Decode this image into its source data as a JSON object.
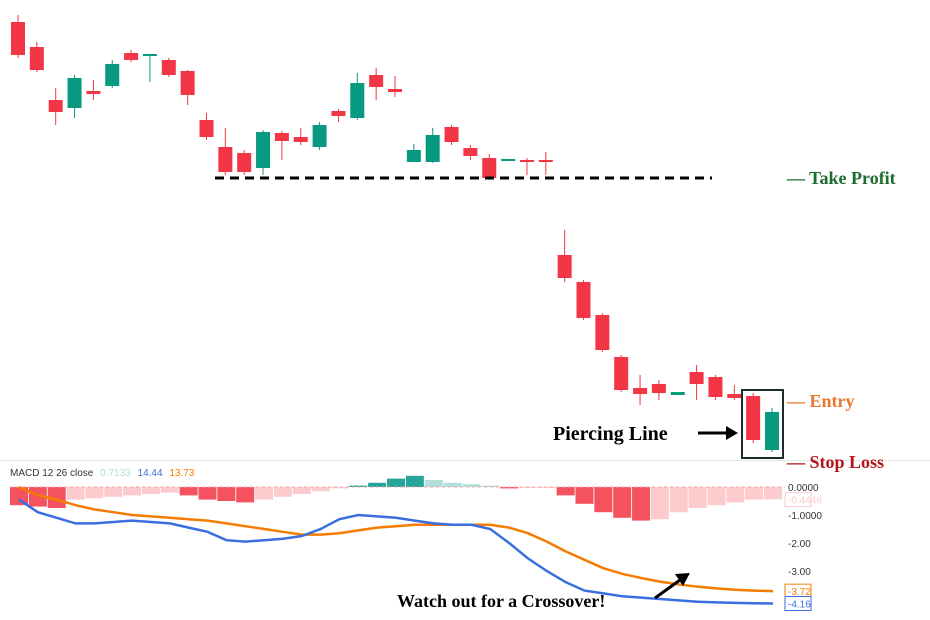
{
  "chart_data": [
    {
      "type": "candlestick",
      "title": "",
      "colors": {
        "up": "#089981",
        "down": "#f23645"
      },
      "ohlc": [
        [
          47.8,
          48.5,
          44.2,
          44.5
        ],
        [
          45.3,
          45.8,
          42.8,
          43.0
        ],
        [
          40.0,
          41.2,
          37.5,
          38.8
        ],
        [
          39.2,
          42.5,
          38.2,
          42.2
        ],
        [
          40.9,
          42.0,
          40.0,
          40.6
        ],
        [
          41.4,
          44.0,
          41.2,
          43.6
        ],
        [
          44.7,
          45.0,
          43.8,
          44.0
        ],
        [
          44.4,
          44.6,
          41.8,
          44.6
        ],
        [
          44.0,
          44.2,
          42.3,
          42.5
        ],
        [
          42.9,
          43.0,
          39.5,
          40.5
        ],
        [
          38.0,
          38.7,
          36.0,
          36.3
        ],
        [
          35.3,
          37.2,
          32.5,
          32.8
        ],
        [
          34.7,
          35.0,
          32.5,
          32.8
        ],
        [
          33.2,
          37.0,
          32.5,
          36.8
        ],
        [
          36.7,
          36.9,
          34.0,
          35.9
        ],
        [
          36.3,
          37.2,
          35.5,
          35.8
        ],
        [
          35.3,
          37.8,
          35.0,
          37.5
        ],
        [
          38.9,
          39.1,
          37.8,
          38.4
        ],
        [
          38.2,
          42.7,
          38.0,
          41.7
        ],
        [
          42.5,
          43.2,
          40.0,
          41.3
        ],
        [
          41.1,
          42.4,
          40.3,
          40.8
        ],
        [
          33.8,
          35.6,
          33.8,
          35.0
        ],
        [
          33.8,
          37.2,
          33.7,
          36.5
        ],
        [
          37.3,
          37.5,
          35.5,
          35.8
        ],
        [
          35.2,
          35.5,
          34.0,
          34.4
        ],
        [
          34.2,
          34.6,
          32.0,
          32.2
        ],
        [
          33.9,
          34.1,
          33.9,
          34.1
        ],
        [
          34.0,
          34.2,
          32.5,
          33.8
        ],
        [
          34.0,
          34.8,
          32.5,
          33.8
        ],
        [
          24.5,
          27.0,
          21.8,
          22.2
        ],
        [
          21.8,
          22.0,
          18.0,
          18.2
        ],
        [
          18.5,
          18.7,
          14.8,
          15.0
        ],
        [
          14.3,
          14.5,
          10.8,
          11.0
        ],
        [
          11.2,
          12.5,
          9.5,
          10.6
        ],
        [
          11.6,
          12.0,
          10.0,
          10.7
        ],
        [
          10.5,
          10.8,
          10.5,
          10.8
        ],
        [
          12.8,
          13.5,
          10.0,
          11.6
        ],
        [
          12.3,
          12.5,
          10.0,
          10.3
        ],
        [
          10.6,
          11.5,
          10.0,
          10.2
        ],
        [
          10.4,
          10.7,
          5.7,
          6.0
        ],
        [
          5.0,
          9.2,
          4.8,
          8.8
        ]
      ],
      "levels": [
        {
          "label": "— Take Profit",
          "price": 32.2,
          "color": "#1e6b2e",
          "dashed_line": true
        },
        {
          "label": "— Entry",
          "price": 9.9,
          "color": "#e8762b"
        },
        {
          "label": "— Stop Loss",
          "price": 3.8,
          "color": "#b3141b"
        }
      ],
      "annotations": {
        "piercing_line": "Piercing Line",
        "highlight_candles": [
          39,
          40
        ]
      }
    },
    {
      "type": "macd",
      "legend": {
        "name": "MACD 12 26 close",
        "histogram": "0.7133",
        "macd": "14.44",
        "signal": "13.73"
      },
      "colors": {
        "macd": "#3a6fe0",
        "signal": "#f57c00",
        "hist_neg_strong": "#f4525e",
        "hist_neg_weak": "#fccbcd",
        "hist_pos_strong": "#26a69a",
        "hist_pos_weak": "#b2dfdb"
      },
      "y_ticks": [
        "0.0000",
        "-1.0000",
        "-2.00",
        "-3.00"
      ],
      "y_tick_values": [
        0,
        -1,
        -2,
        -3
      ],
      "ylim": [
        -4.35,
        0.15
      ],
      "last_values": {
        "histogram": "-0.4446",
        "signal": "-3.72",
        "macd": "-4.16"
      },
      "histogram": [
        -0.65,
        -0.7,
        -0.75,
        -0.45,
        -0.4,
        -0.35,
        -0.3,
        -0.25,
        -0.2,
        -0.3,
        -0.45,
        -0.5,
        -0.55,
        -0.45,
        -0.35,
        -0.25,
        -0.15,
        -0.05,
        0.05,
        0.15,
        0.3,
        0.4,
        0.25,
        0.15,
        0.1,
        0.05,
        -0.05,
        -0.03,
        -0.02,
        -0.3,
        -0.6,
        -0.9,
        -1.1,
        -1.2,
        -1.15,
        -0.9,
        -0.75,
        -0.65,
        -0.55,
        -0.45,
        -0.44
      ],
      "macd": [
        -0.45,
        -0.9,
        -1.1,
        -1.3,
        -1.3,
        -1.25,
        -1.2,
        -1.25,
        -1.3,
        -1.45,
        -1.6,
        -1.9,
        -1.95,
        -1.9,
        -1.85,
        -1.75,
        -1.5,
        -1.15,
        -1.0,
        -1.05,
        -1.1,
        -1.2,
        -1.3,
        -1.35,
        -1.35,
        -1.5,
        -2.0,
        -2.55,
        -3.0,
        -3.4,
        -3.7,
        -3.8,
        -3.9,
        -3.95,
        -4.0,
        -4.05,
        -4.1,
        -4.12,
        -4.14,
        -4.15,
        -4.16
      ],
      "signal": [
        0.0,
        -0.3,
        -0.45,
        -0.65,
        -0.8,
        -0.9,
        -1.0,
        -1.05,
        -1.1,
        -1.15,
        -1.2,
        -1.3,
        -1.4,
        -1.5,
        -1.6,
        -1.7,
        -1.7,
        -1.65,
        -1.55,
        -1.45,
        -1.4,
        -1.35,
        -1.35,
        -1.35,
        -1.35,
        -1.35,
        -1.45,
        -1.65,
        -1.95,
        -2.3,
        -2.6,
        -2.9,
        -3.1,
        -3.25,
        -3.38,
        -3.48,
        -3.56,
        -3.62,
        -3.67,
        -3.7,
        -3.72
      ],
      "annotation": "Watch out for a Crossover!"
    }
  ]
}
